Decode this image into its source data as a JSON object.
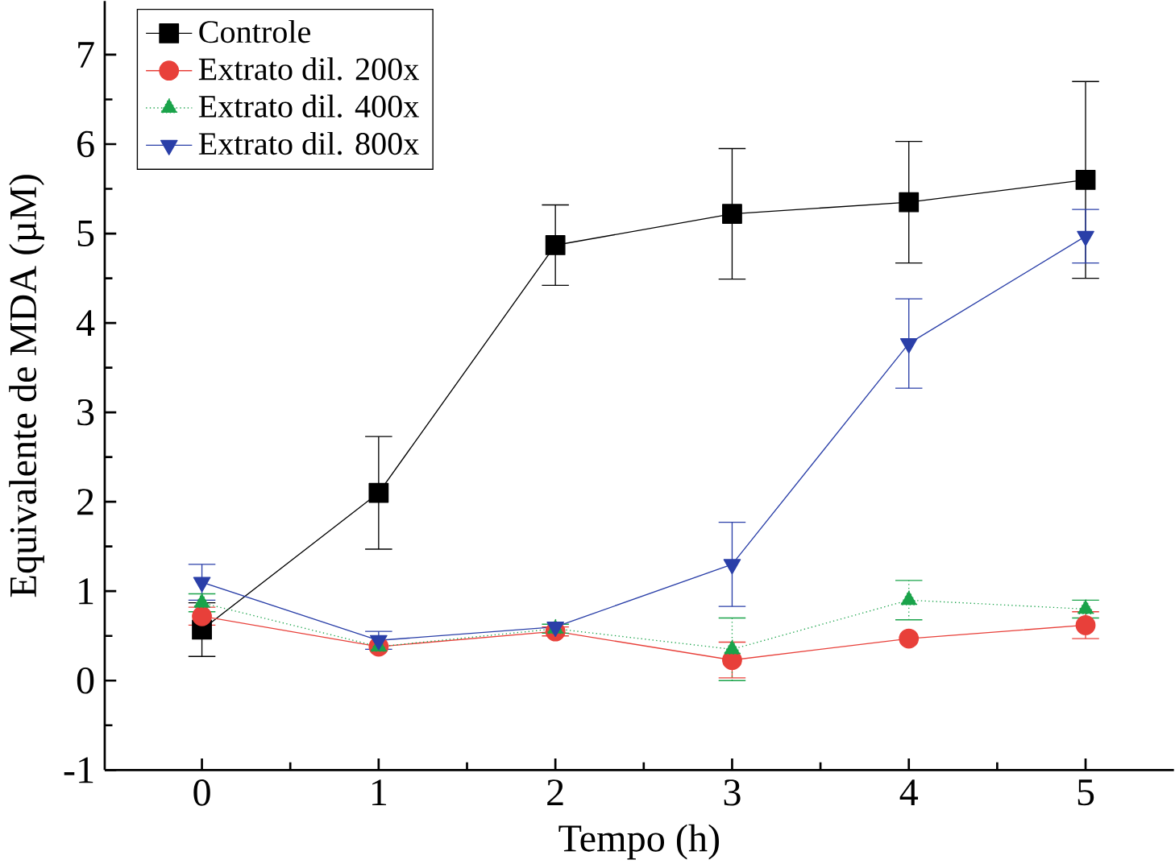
{
  "chart_data": {
    "type": "line",
    "xlabel": "Tempo (h)",
    "ylabel": "Equivalente de MDA (µM)",
    "x": [
      0,
      1,
      2,
      3,
      4,
      5
    ],
    "xlim": [
      -0.55,
      5.5
    ],
    "ylim": [
      -1,
      7.6
    ],
    "xticks": [
      0,
      1,
      2,
      3,
      4,
      5
    ],
    "yticks": [
      -1,
      0,
      1,
      2,
      3,
      4,
      5,
      6,
      7
    ],
    "legend": "top left",
    "series": [
      {
        "name": "Controle",
        "color": "#000000",
        "marker": "square",
        "values": [
          0.57,
          2.1,
          4.87,
          5.22,
          5.35,
          5.6
        ],
        "errors": [
          0.3,
          0.63,
          0.45,
          0.73,
          0.68,
          1.1
        ]
      },
      {
        "name": "Extrato dil. 200x",
        "color": "#e8403a",
        "marker": "circle",
        "values": [
          0.72,
          0.38,
          0.55,
          0.23,
          0.47,
          0.62
        ],
        "errors": [
          0.1,
          null,
          0.05,
          0.2,
          null,
          0.15
        ]
      },
      {
        "name": "Extrato dil. 400x",
        "color": "#1aa34a",
        "marker": "triangle",
        "line_style": "dotted",
        "values": [
          0.87,
          0.38,
          0.58,
          0.35,
          0.9,
          0.8
        ],
        "errors": [
          0.1,
          null,
          0.05,
          0.35,
          0.22,
          0.1
        ]
      },
      {
        "name": "Extrato dil. 800x",
        "color": "#2a3fa8",
        "marker": "triangle down",
        "values": [
          1.1,
          0.45,
          0.6,
          1.3,
          3.77,
          4.97
        ],
        "errors": [
          0.2,
          0.1,
          null,
          0.47,
          0.5,
          0.3
        ]
      }
    ]
  }
}
